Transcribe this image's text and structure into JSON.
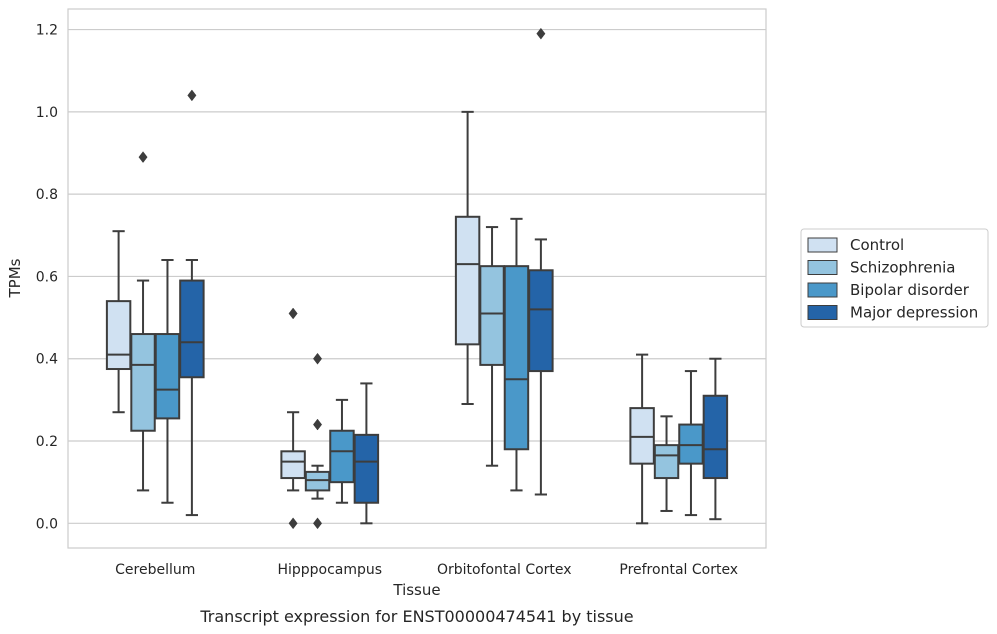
{
  "chart_data": {
    "type": "box",
    "title": "",
    "caption": "Transcript expression for ENST00000474541 by tissue",
    "xlabel": "Tissue",
    "ylabel": "TPMs",
    "ylim": [
      -0.06,
      1.25
    ],
    "yticks": [
      0.0,
      0.2,
      0.4,
      0.6,
      0.8,
      1.0,
      1.2
    ],
    "ytick_labels": [
      "0.0",
      "0.2",
      "0.4",
      "0.6",
      "0.8",
      "1.0",
      "1.2"
    ],
    "grid": "horizontal",
    "legend_position": "right",
    "categories": [
      "Cerebellum",
      "Hipppocampus",
      "Orbitofontal Cortex",
      "Prefrontal Cortex"
    ],
    "series": [
      {
        "name": "Control",
        "color": "#d0e1f2",
        "boxes": [
          {
            "whisker_low": 0.27,
            "q1": 0.375,
            "median": 0.41,
            "q3": 0.54,
            "whisker_high": 0.71,
            "outliers": []
          },
          {
            "whisker_low": 0.08,
            "q1": 0.11,
            "median": 0.15,
            "q3": 0.175,
            "whisker_high": 0.27,
            "outliers": [
              0.0,
              0.51
            ]
          },
          {
            "whisker_low": 0.29,
            "q1": 0.435,
            "median": 0.63,
            "q3": 0.745,
            "whisker_high": 1.0,
            "outliers": []
          },
          {
            "whisker_low": 0.0,
            "q1": 0.145,
            "median": 0.21,
            "q3": 0.28,
            "whisker_high": 0.41,
            "outliers": []
          }
        ]
      },
      {
        "name": "Schizophrenia",
        "color": "#94c4df",
        "boxes": [
          {
            "whisker_low": 0.08,
            "q1": 0.225,
            "median": 0.385,
            "q3": 0.46,
            "whisker_high": 0.59,
            "outliers": [
              0.89
            ]
          },
          {
            "whisker_low": 0.06,
            "q1": 0.08,
            "median": 0.105,
            "q3": 0.125,
            "whisker_high": 0.14,
            "outliers": [
              0.0,
              0.24,
              0.4
            ]
          },
          {
            "whisker_low": 0.14,
            "q1": 0.385,
            "median": 0.51,
            "q3": 0.625,
            "whisker_high": 0.72,
            "outliers": []
          },
          {
            "whisker_low": 0.03,
            "q1": 0.11,
            "median": 0.165,
            "q3": 0.19,
            "whisker_high": 0.26,
            "outliers": []
          }
        ]
      },
      {
        "name": "Bipolar disorder",
        "color": "#4a98c9",
        "boxes": [
          {
            "whisker_low": 0.05,
            "q1": 0.255,
            "median": 0.325,
            "q3": 0.46,
            "whisker_high": 0.64,
            "outliers": []
          },
          {
            "whisker_low": 0.05,
            "q1": 0.1,
            "median": 0.175,
            "q3": 0.225,
            "whisker_high": 0.3,
            "outliers": []
          },
          {
            "whisker_low": 0.08,
            "q1": 0.18,
            "median": 0.35,
            "q3": 0.625,
            "whisker_high": 0.74,
            "outliers": []
          },
          {
            "whisker_low": 0.02,
            "q1": 0.145,
            "median": 0.19,
            "q3": 0.24,
            "whisker_high": 0.37,
            "outliers": []
          }
        ]
      },
      {
        "name": "Major depression",
        "color": "#2464a8",
        "boxes": [
          {
            "whisker_low": 0.02,
            "q1": 0.355,
            "median": 0.44,
            "q3": 0.59,
            "whisker_high": 0.64,
            "outliers": [
              1.04
            ]
          },
          {
            "whisker_low": 0.0,
            "q1": 0.05,
            "median": 0.15,
            "q3": 0.215,
            "whisker_high": 0.34,
            "outliers": []
          },
          {
            "whisker_low": 0.07,
            "q1": 0.37,
            "median": 0.52,
            "q3": 0.615,
            "whisker_high": 0.69,
            "outliers": [
              1.19
            ]
          },
          {
            "whisker_low": 0.01,
            "q1": 0.11,
            "median": 0.18,
            "q3": 0.31,
            "whisker_high": 0.4,
            "outliers": []
          }
        ]
      }
    ]
  }
}
